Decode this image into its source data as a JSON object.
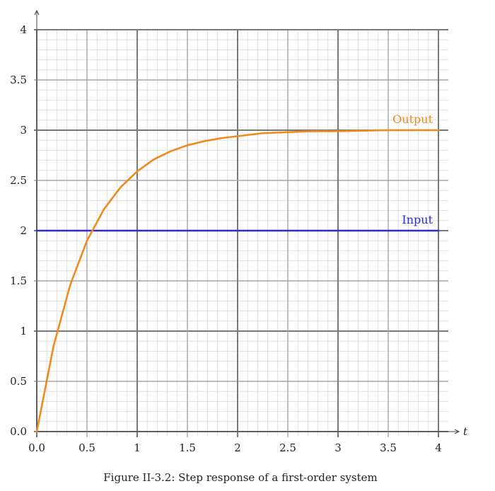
{
  "caption": "Figure II-3.2: Step response of a first-order system",
  "chart_data": {
    "type": "line",
    "title": "",
    "xlabel": "t",
    "ylabel": "",
    "xlim": [
      0,
      4
    ],
    "ylim": [
      0,
      4
    ],
    "grid": true,
    "x_ticks": [
      0,
      0.5,
      1,
      1.5,
      2,
      2.5,
      3,
      3.5,
      4
    ],
    "x_tick_labels": [
      "0.0",
      "0.5",
      "1",
      "1.5",
      "2",
      "2.5",
      "3",
      "3.5",
      "4"
    ],
    "y_ticks": [
      0,
      0.5,
      1,
      1.5,
      2,
      2.5,
      3,
      3.5,
      4
    ],
    "y_tick_labels": [
      "0.0",
      "0.5",
      "1",
      "1.5",
      "2",
      "2.5",
      "3",
      "3.5",
      "4"
    ],
    "series": [
      {
        "name": "Input",
        "color": "#2b2bd6",
        "x": [
          0,
          4
        ],
        "y": [
          2,
          2
        ]
      },
      {
        "name": "Output",
        "color": "#f08a1c",
        "x": [
          0,
          0.167,
          0.333,
          0.5,
          0.667,
          0.833,
          1,
          1.167,
          1.333,
          1.5,
          1.667,
          1.833,
          2,
          2.25,
          2.5,
          2.75,
          3,
          3.5,
          4
        ],
        "y": [
          0,
          0.85,
          1.46,
          1.9,
          2.21,
          2.43,
          2.59,
          2.71,
          2.79,
          2.85,
          2.89,
          2.92,
          2.94,
          2.97,
          2.98,
          2.99,
          2.99,
          3.0,
          3.0
        ]
      }
    ]
  }
}
